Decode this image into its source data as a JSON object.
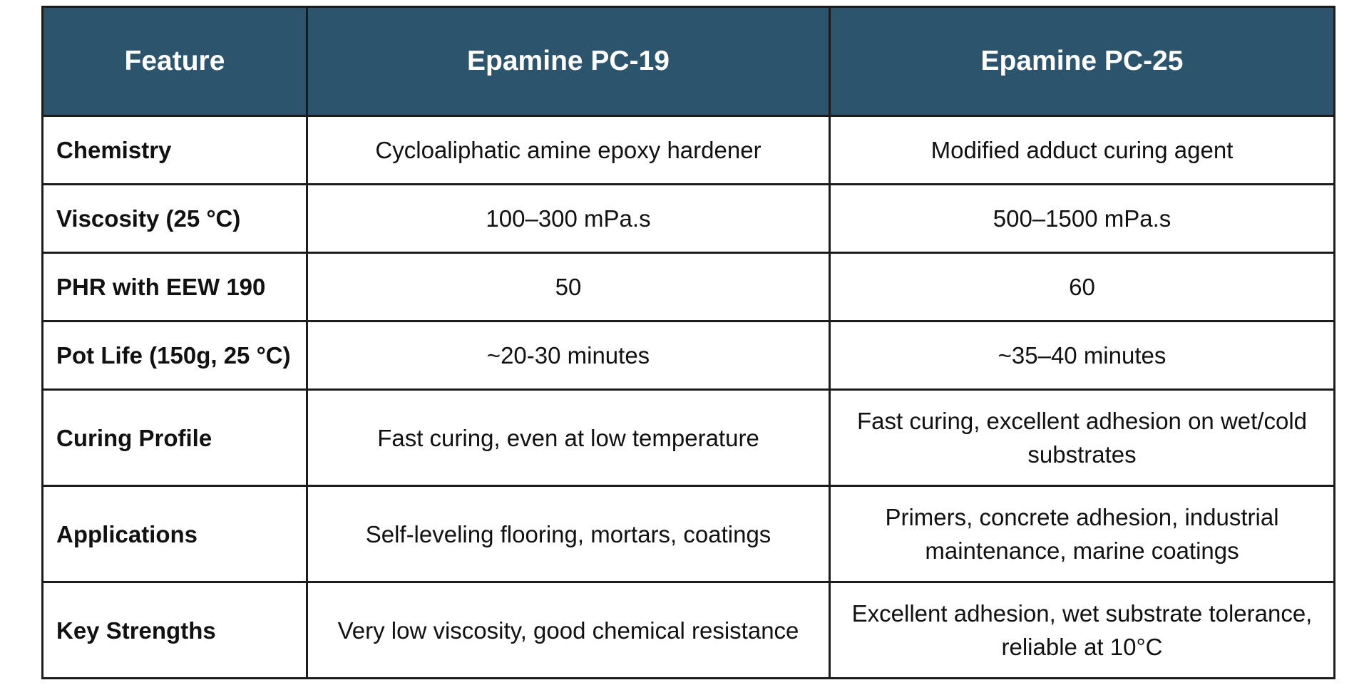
{
  "table": {
    "headers": [
      "Feature",
      "Epamine PC-19",
      "Epamine PC-25"
    ],
    "rows": [
      {
        "feature": "Chemistry",
        "pc19": "Cycloaliphatic amine epoxy hardener",
        "pc25": "Modified adduct curing agent"
      },
      {
        "feature": "Viscosity (25 °C)",
        "pc19": "100–300 mPa.s",
        "pc25": "500–1500 mPa.s"
      },
      {
        "feature": "PHR with EEW 190",
        "pc19": "50",
        "pc25": "60"
      },
      {
        "feature": "Pot Life (150g, 25 °C)",
        "pc19": "~20-30 minutes",
        "pc25": "~35–40 minutes"
      },
      {
        "feature": "Curing Profile",
        "pc19": "Fast curing, even at low temperature",
        "pc25": "Fast curing, excellent adhesion on wet/cold substrates"
      },
      {
        "feature": "Applications",
        "pc19": "Self-leveling flooring, mortars, coatings",
        "pc25": "Primers, concrete adhesion, industrial maintenance, marine coatings"
      },
      {
        "feature": "Key Strengths",
        "pc19": "Very low viscosity, good chemical resistance",
        "pc25": "Excellent adhesion, wet substrate tolerance, reliable at 10°C"
      }
    ]
  },
  "colors": {
    "header_bg": "#2c546d",
    "header_text": "#ffffff",
    "border": "#1c1c1c",
    "body_text": "#111111"
  }
}
